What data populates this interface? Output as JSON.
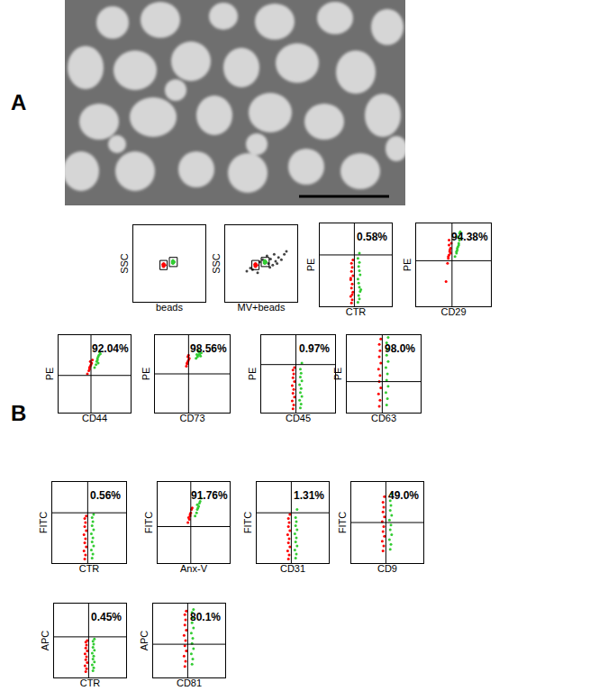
{
  "figure_labels": [
    "A",
    "B"
  ],
  "chart_data": [
    {
      "type": "scatter",
      "x_label": "beads",
      "y_label": "SSC",
      "xlim": [
        0,
        100
      ],
      "ylim": [
        0,
        100
      ],
      "tick_labels": false,
      "grid": false,
      "gates": [
        {
          "x0": 37,
          "x1": 47,
          "y0": 42,
          "y1": 54
        },
        {
          "x0": 50,
          "x1": 61,
          "y0": 46,
          "y1": 58
        }
      ],
      "series": [
        {
          "color": "#ff0000",
          "x": [
            41,
            42,
            43,
            42,
            41,
            43,
            42,
            44
          ],
          "y": [
            47,
            48,
            49,
            46,
            49,
            47,
            50,
            48
          ]
        },
        {
          "color": "#33cc33",
          "x": [
            54,
            55,
            56,
            55,
            54,
            56,
            55,
            57
          ],
          "y": [
            51,
            52,
            53,
            50,
            53,
            51,
            54,
            52
          ]
        }
      ]
    },
    {
      "type": "scatter",
      "x_label": "MV+beads",
      "y_label": "SSC",
      "xlim": [
        0,
        100
      ],
      "ylim": [
        0,
        100
      ],
      "tick_labels": false,
      "grid": false,
      "gates": [
        {
          "x0": 37,
          "x1": 47,
          "y0": 42,
          "y1": 54
        },
        {
          "x0": 50,
          "x1": 61,
          "y0": 46,
          "y1": 58
        }
      ],
      "series": [
        {
          "color": "#444444",
          "x": [
            30,
            35,
            38,
            48,
            52,
            60,
            63,
            66,
            70,
            74,
            78,
            82,
            58,
            62,
            68,
            72,
            85,
            45
          ],
          "y": [
            40,
            44,
            42,
            52,
            55,
            50,
            56,
            48,
            53,
            58,
            55,
            62,
            60,
            45,
            62,
            50,
            66,
            38
          ]
        },
        {
          "color": "#ff0000",
          "x": [
            41,
            42,
            43,
            42,
            41,
            43,
            42,
            44
          ],
          "y": [
            47,
            48,
            49,
            46,
            49,
            47,
            50,
            48
          ]
        },
        {
          "color": "#33cc33",
          "x": [
            54,
            55,
            56,
            55,
            54,
            56,
            55,
            57
          ],
          "y": [
            51,
            52,
            53,
            50,
            53,
            51,
            54,
            52
          ]
        }
      ]
    },
    {
      "type": "scatter",
      "x_label": "CTR",
      "y_label": "PE",
      "xlim": [
        0,
        100
      ],
      "ylim": [
        0,
        100
      ],
      "tick_labels": false,
      "grid": false,
      "gate": {
        "x": 48,
        "y": 62
      },
      "annotation": "0.58%",
      "series": [
        {
          "color": "#ff0000",
          "x": [
            44,
            45,
            43,
            46,
            44,
            45,
            43,
            46,
            44,
            45,
            44,
            46,
            45,
            43
          ],
          "y": [
            4,
            8,
            12,
            17,
            22,
            27,
            32,
            37,
            42,
            47,
            52,
            56,
            14,
            34
          ]
        },
        {
          "color": "#33cc33",
          "x": [
            53,
            55,
            54,
            56,
            55,
            54,
            53,
            56,
            55,
            54,
            55,
            53,
            57,
            55
          ],
          "y": [
            5,
            9,
            13,
            18,
            23,
            28,
            33,
            38,
            43,
            48,
            53,
            58,
            20,
            64
          ]
        }
      ]
    },
    {
      "type": "scatter",
      "x_label": "CD29",
      "y_label": "PE",
      "xlim": [
        0,
        100
      ],
      "ylim": [
        0,
        100
      ],
      "tick_labels": false,
      "grid": false,
      "gate": {
        "x": 48,
        "y": 55
      },
      "annotation": "94.38%",
      "series": [
        {
          "color": "#ff0000",
          "x": [
            42,
            43,
            44,
            45,
            46,
            44,
            43,
            45,
            47,
            44,
            40,
            46
          ],
          "y": [
            52,
            58,
            62,
            66,
            70,
            74,
            60,
            68,
            76,
            80,
            30,
            64
          ]
        },
        {
          "color": "#33cc33",
          "x": [
            52,
            54,
            55,
            56,
            57,
            58,
            55,
            56,
            58,
            57,
            54,
            59,
            60
          ],
          "y": [
            60,
            64,
            68,
            72,
            76,
            80,
            70,
            84,
            88,
            74,
            66,
            90,
            82
          ]
        }
      ]
    },
    {
      "type": "scatter",
      "x_label": "CD44",
      "y_label": "PE",
      "xlim": [
        0,
        100
      ],
      "ylim": [
        0,
        100
      ],
      "tick_labels": false,
      "grid": false,
      "gate": {
        "x": 45,
        "y": 48
      },
      "annotation": "92.04%",
      "series": [
        {
          "color": "#ff0000",
          "x": [
            40,
            42,
            43,
            44,
            46,
            45,
            47,
            43,
            44
          ],
          "y": [
            50,
            54,
            58,
            60,
            64,
            62,
            68,
            56,
            66
          ]
        },
        {
          "color": "#33cc33",
          "x": [
            50,
            52,
            53,
            54,
            55,
            56,
            57,
            54,
            58,
            55
          ],
          "y": [
            58,
            62,
            66,
            68,
            72,
            74,
            78,
            70,
            76,
            64
          ]
        }
      ]
    },
    {
      "type": "scatter",
      "x_label": "CD73",
      "y_label": "PE",
      "xlim": [
        0,
        100
      ],
      "ylim": [
        0,
        100
      ],
      "tick_labels": false,
      "grid": false,
      "gate": {
        "x": 45,
        "y": 50
      },
      "annotation": "98.56%",
      "series": [
        {
          "color": "#ff0000",
          "x": [
            42,
            43,
            44,
            45,
            46,
            44,
            43,
            45
          ],
          "y": [
            60,
            63,
            66,
            68,
            70,
            72,
            64,
            74
          ]
        },
        {
          "color": "#33cc33",
          "x": [
            55,
            57,
            58,
            60,
            59,
            61,
            56,
            62,
            58
          ],
          "y": [
            70,
            72,
            74,
            76,
            78,
            73,
            75,
            77,
            80
          ]
        }
      ]
    },
    {
      "type": "scatter",
      "x_label": "CD45",
      "y_label": "PE",
      "xlim": [
        0,
        100
      ],
      "ylim": [
        0,
        100
      ],
      "tick_labels": false,
      "grid": false,
      "gate": {
        "x": 47,
        "y": 62
      },
      "annotation": "0.97%",
      "series": [
        {
          "color": "#ff0000",
          "x": [
            43,
            44,
            42,
            45,
            43,
            44,
            42,
            45,
            43,
            44,
            43,
            45
          ],
          "y": [
            5,
            10,
            15,
            20,
            25,
            30,
            35,
            40,
            45,
            50,
            55,
            58
          ]
        },
        {
          "color": "#33cc33",
          "x": [
            53,
            54,
            52,
            55,
            53,
            54,
            52,
            55,
            53,
            54,
            53,
            55
          ],
          "y": [
            6,
            11,
            16,
            21,
            26,
            31,
            36,
            41,
            46,
            51,
            56,
            64
          ]
        }
      ]
    },
    {
      "type": "scatter",
      "x_label": "CD63",
      "y_label": "PE",
      "xlim": [
        0,
        100
      ],
      "ylim": [
        0,
        100
      ],
      "tick_labels": false,
      "grid": false,
      "gate": {
        "x": 48,
        "y": 40
      },
      "annotation": "98.0%",
      "series": [
        {
          "color": "#ff0000",
          "x": [
            44,
            45,
            43,
            46,
            44,
            45,
            43,
            46,
            44,
            45,
            44,
            46
          ],
          "y": [
            8,
            16,
            24,
            32,
            40,
            48,
            56,
            64,
            72,
            80,
            88,
            95
          ]
        },
        {
          "color": "#33cc33",
          "x": [
            54,
            55,
            53,
            56,
            54,
            55,
            53,
            56,
            54,
            55,
            54,
            56
          ],
          "y": [
            10,
            18,
            26,
            34,
            42,
            50,
            58,
            66,
            74,
            82,
            90,
            97
          ]
        }
      ]
    },
    {
      "type": "scatter",
      "x_label": "CTR",
      "y_label": "FITC",
      "xlim": [
        0,
        100
      ],
      "ylim": [
        0,
        100
      ],
      "tick_labels": false,
      "grid": false,
      "gate": {
        "x": 48,
        "y": 62
      },
      "annotation": "0.56%",
      "series": [
        {
          "color": "#ff0000",
          "x": [
            44,
            45,
            43,
            46,
            44,
            45,
            43,
            46,
            44,
            45,
            44,
            46
          ],
          "y": [
            5,
            10,
            15,
            20,
            25,
            30,
            35,
            40,
            45,
            50,
            55,
            58
          ]
        },
        {
          "color": "#33cc33",
          "x": [
            54,
            55,
            53,
            56,
            54,
            55,
            53,
            56,
            54,
            55,
            54,
            56
          ],
          "y": [
            6,
            11,
            16,
            21,
            26,
            31,
            36,
            41,
            46,
            51,
            56,
            60
          ]
        }
      ]
    },
    {
      "type": "scatter",
      "x_label": "Anx-V",
      "y_label": "FITC",
      "xlim": [
        0,
        100
      ],
      "ylim": [
        0,
        100
      ],
      "tick_labels": false,
      "grid": false,
      "gate": {
        "x": 46,
        "y": 45
      },
      "annotation": "91.76%",
      "series": [
        {
          "color": "#ff0000",
          "x": [
            42,
            44,
            45,
            46,
            47,
            45,
            43,
            48
          ],
          "y": [
            50,
            54,
            58,
            62,
            66,
            60,
            56,
            68
          ]
        },
        {
          "color": "#33cc33",
          "x": [
            52,
            54,
            55,
            57,
            58,
            56,
            59,
            60,
            55
          ],
          "y": [
            58,
            62,
            66,
            70,
            74,
            68,
            76,
            80,
            72
          ]
        }
      ]
    },
    {
      "type": "scatter",
      "x_label": "CD31",
      "y_label": "FITC",
      "xlim": [
        0,
        100
      ],
      "ylim": [
        0,
        100
      ],
      "tick_labels": false,
      "grid": false,
      "gate": {
        "x": 48,
        "y": 62
      },
      "annotation": "1.31%",
      "series": [
        {
          "color": "#ff0000",
          "x": [
            44,
            45,
            43,
            46,
            44,
            45,
            43,
            46,
            44,
            45,
            44,
            46
          ],
          "y": [
            5,
            10,
            15,
            20,
            25,
            30,
            35,
            40,
            45,
            50,
            55,
            60
          ]
        },
        {
          "color": "#33cc33",
          "x": [
            54,
            55,
            53,
            56,
            54,
            55,
            53,
            56,
            54,
            55,
            54,
            56
          ],
          "y": [
            6,
            11,
            16,
            21,
            26,
            31,
            36,
            41,
            46,
            51,
            56,
            66
          ]
        }
      ]
    },
    {
      "type": "scatter",
      "x_label": "CD9",
      "y_label": "FITC",
      "xlim": [
        0,
        100
      ],
      "ylim": [
        0,
        100
      ],
      "tick_labels": false,
      "grid": false,
      "gate": {
        "x": 48,
        "y": 50
      },
      "annotation": "49.0%",
      "series": [
        {
          "color": "#ff0000",
          "x": [
            44,
            45,
            43,
            46,
            44,
            45,
            43,
            46,
            44,
            45,
            44,
            46
          ],
          "y": [
            15,
            21,
            27,
            33,
            39,
            45,
            51,
            57,
            63,
            69,
            75,
            82
          ]
        },
        {
          "color": "#33cc33",
          "x": [
            54,
            55,
            53,
            56,
            54,
            55,
            53,
            56,
            54,
            55,
            54,
            56
          ],
          "y": [
            17,
            23,
            29,
            35,
            41,
            47,
            53,
            59,
            65,
            71,
            77,
            85
          ]
        }
      ]
    },
    {
      "type": "scatter",
      "x_label": "CTR",
      "y_label": "APC",
      "xlim": [
        0,
        100
      ],
      "ylim": [
        0,
        100
      ],
      "tick_labels": false,
      "grid": false,
      "gate": {
        "x": 48,
        "y": 55
      },
      "annotation": "0.45%",
      "series": [
        {
          "color": "#ff0000",
          "x": [
            44,
            45,
            43,
            46,
            44,
            45,
            43,
            46,
            44,
            45,
            44,
            46
          ],
          "y": [
            8,
            12,
            16,
            20,
            24,
            28,
            32,
            36,
            40,
            44,
            48,
            50
          ]
        },
        {
          "color": "#33cc33",
          "x": [
            54,
            55,
            53,
            56,
            54,
            55,
            53,
            56,
            54,
            55,
            54,
            56
          ],
          "y": [
            9,
            13,
            17,
            21,
            25,
            29,
            33,
            37,
            41,
            45,
            49,
            52
          ]
        }
      ]
    },
    {
      "type": "scatter",
      "x_label": "CD81",
      "y_label": "APC",
      "xlim": [
        0,
        100
      ],
      "ylim": [
        0,
        100
      ],
      "tick_labels": false,
      "grid": false,
      "gate": {
        "x": 48,
        "y": 45
      },
      "annotation": "80.1%",
      "series": [
        {
          "color": "#ff0000",
          "x": [
            44,
            45,
            43,
            46,
            44,
            45,
            43,
            46,
            44,
            45,
            44,
            46
          ],
          "y": [
            15,
            22,
            29,
            36,
            43,
            50,
            57,
            64,
            71,
            78,
            85,
            90
          ]
        },
        {
          "color": "#33cc33",
          "x": [
            54,
            55,
            53,
            56,
            54,
            55,
            53,
            56,
            54,
            55,
            54,
            56
          ],
          "y": [
            18,
            25,
            32,
            39,
            46,
            53,
            60,
            67,
            74,
            81,
            88,
            92
          ]
        }
      ]
    }
  ]
}
